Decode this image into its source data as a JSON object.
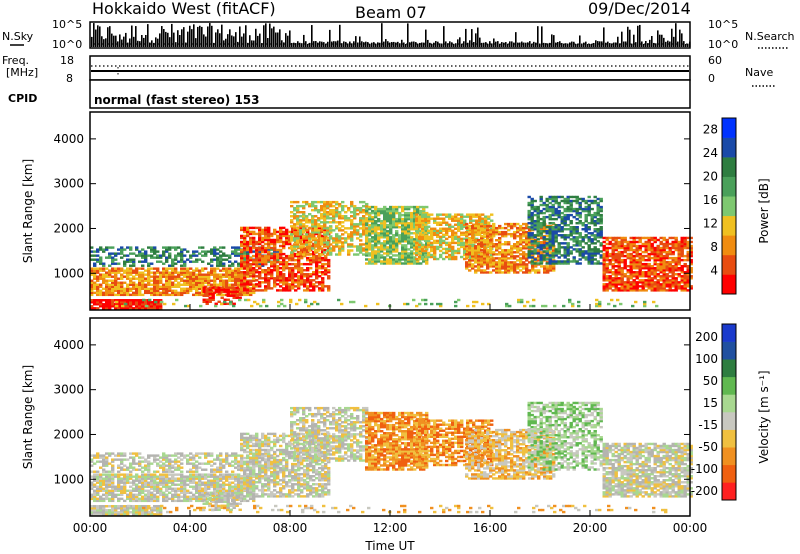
{
  "header": {
    "station": "Hokkaido West (fitACF)",
    "beam": "Beam 07",
    "date": "09/Dec/2014"
  },
  "top_panels": {
    "nsky_label": "N.Sky",
    "nsky_ticks": [
      "10^5",
      "10^0"
    ],
    "nsearch_label": "N.Search",
    "nsearch_ticks": [
      "10^5",
      "10^0"
    ],
    "freq_label_1": "Freq.",
    "freq_label_2": "[MHz]",
    "freq_ticks": [
      "18",
      "8"
    ],
    "nave_label": "Nave",
    "nave_ticks": [
      "60",
      "0"
    ],
    "cpid_label": "CPID",
    "cpid_value": "normal (fast stereo) 153"
  },
  "colors": {
    "power_scale": [
      "#0033ff",
      "#1a4aa8",
      "#2e7d40",
      "#4aa05a",
      "#7ec870",
      "#f0c020",
      "#f08c10",
      "#e84c10",
      "#ff0000"
    ],
    "velocity_scale": [
      "#1a3acc",
      "#2050a0",
      "#2e7d40",
      "#60b850",
      "#a8d890",
      "#c8c8c0",
      "#f0c040",
      "#f09020",
      "#f06010",
      "#ff2020"
    ],
    "ground_scatter": "#b4b4b0"
  },
  "chart_data": [
    {
      "type": "heatmap",
      "name": "power",
      "xlabel": "",
      "ylabel": "Slant Range [km]",
      "x_ticks": [
        "00:00",
        "04:00",
        "08:00",
        "12:00",
        "16:00",
        "20:00",
        "00:00"
      ],
      "y_ticks": [
        "1000",
        "2000",
        "3000",
        "4000"
      ],
      "xlim_hours": [
        0,
        24
      ],
      "ylim_km": [
        180,
        4600
      ],
      "colorbar_label": "Power [dB]",
      "colorbar_ticks": [
        "4",
        "8",
        "12",
        "16",
        "20",
        "24",
        "28"
      ],
      "colorbar_range": [
        0,
        30
      ]
    },
    {
      "type": "heatmap",
      "name": "velocity",
      "xlabel": "Time UT",
      "ylabel": "Slant Range [km]",
      "x_ticks": [
        "00:00",
        "04:00",
        "08:00",
        "12:00",
        "16:00",
        "20:00",
        "00:00"
      ],
      "y_ticks": [
        "1000",
        "2000",
        "3000",
        "4000"
      ],
      "xlim_hours": [
        0,
        24
      ],
      "ylim_km": [
        180,
        4600
      ],
      "colorbar_label": "Velocity [m s⁻¹]",
      "colorbar_ticks": [
        "200",
        "100",
        "50",
        "15",
        "-15",
        "-50",
        "-100",
        "-200"
      ],
      "colorbar_range": [
        -250,
        250
      ]
    }
  ]
}
